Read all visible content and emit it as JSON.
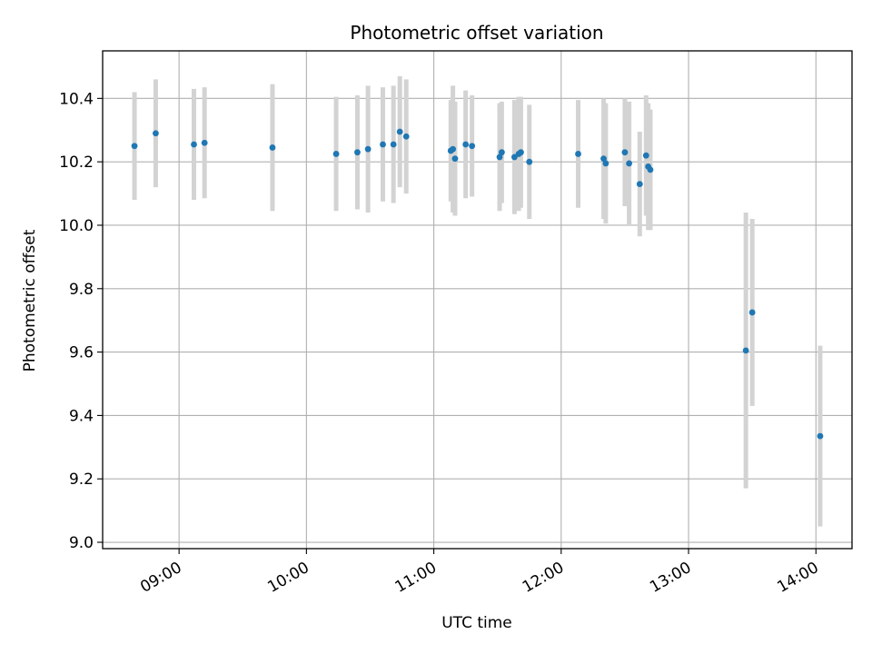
{
  "chart_data": {
    "type": "scatter",
    "title": "Photometric offset variation",
    "xlabel": "UTC time",
    "ylabel": "Photometric offset",
    "x_tick_labels": [
      "09:00",
      "10:00",
      "11:00",
      "12:00",
      "13:00",
      "14:00"
    ],
    "y_tick_labels": [
      "9.0",
      "9.2",
      "9.4",
      "9.6",
      "9.8",
      "10.0",
      "10.2",
      "10.4"
    ],
    "xlim": [
      "08:24",
      "14:17"
    ],
    "ylim": [
      8.98,
      10.55
    ],
    "grid": true,
    "marker_color": "#1f77b4",
    "errorbar_color": "#d3d3d3",
    "series": [
      {
        "points": [
          {
            "x": "08:39",
            "y": 10.25,
            "err": 0.17
          },
          {
            "x": "08:49",
            "y": 10.29,
            "err": 0.17
          },
          {
            "x": "09:07",
            "y": 10.255,
            "err": 0.175
          },
          {
            "x": "09:12",
            "y": 10.26,
            "err": 0.175
          },
          {
            "x": "09:44",
            "y": 10.245,
            "err": 0.2
          },
          {
            "x": "10:14",
            "y": 10.225,
            "err": 0.18
          },
          {
            "x": "10:24",
            "y": 10.23,
            "err": 0.18
          },
          {
            "x": "10:29",
            "y": 10.24,
            "err": 0.2
          },
          {
            "x": "10:36",
            "y": 10.255,
            "err": 0.18
          },
          {
            "x": "10:41",
            "y": 10.255,
            "err": 0.185
          },
          {
            "x": "10:44",
            "y": 10.295,
            "err": 0.175
          },
          {
            "x": "10:47",
            "y": 10.28,
            "err": 0.18
          },
          {
            "x": "11:08",
            "y": 10.235,
            "err": 0.16
          },
          {
            "x": "11:09",
            "y": 10.24,
            "err": 0.2
          },
          {
            "x": "11:10",
            "y": 10.21,
            "err": 0.18
          },
          {
            "x": "11:15",
            "y": 10.255,
            "err": 0.17
          },
          {
            "x": "11:18",
            "y": 10.25,
            "err": 0.16
          },
          {
            "x": "11:31",
            "y": 10.215,
            "err": 0.17
          },
          {
            "x": "11:32",
            "y": 10.23,
            "err": 0.16
          },
          {
            "x": "11:38",
            "y": 10.215,
            "err": 0.18
          },
          {
            "x": "11:40",
            "y": 10.225,
            "err": 0.18
          },
          {
            "x": "11:41",
            "y": 10.23,
            "err": 0.175
          },
          {
            "x": "11:45",
            "y": 10.2,
            "err": 0.18
          },
          {
            "x": "12:08",
            "y": 10.225,
            "err": 0.17
          },
          {
            "x": "12:20",
            "y": 10.21,
            "err": 0.19
          },
          {
            "x": "12:21",
            "y": 10.195,
            "err": 0.19
          },
          {
            "x": "12:30",
            "y": 10.23,
            "err": 0.17
          },
          {
            "x": "12:32",
            "y": 10.195,
            "err": 0.195
          },
          {
            "x": "12:37",
            "y": 10.13,
            "err": 0.165
          },
          {
            "x": "12:40",
            "y": 10.22,
            "err": 0.19
          },
          {
            "x": "12:41",
            "y": 10.185,
            "err": 0.2
          },
          {
            "x": "12:42",
            "y": 10.175,
            "err": 0.19
          },
          {
            "x": "13:27",
            "y": 9.605,
            "err": 0.435
          },
          {
            "x": "13:30",
            "y": 9.725,
            "err": 0.295
          },
          {
            "x": "14:02",
            "y": 9.335,
            "err": 0.285
          }
        ]
      }
    ]
  }
}
